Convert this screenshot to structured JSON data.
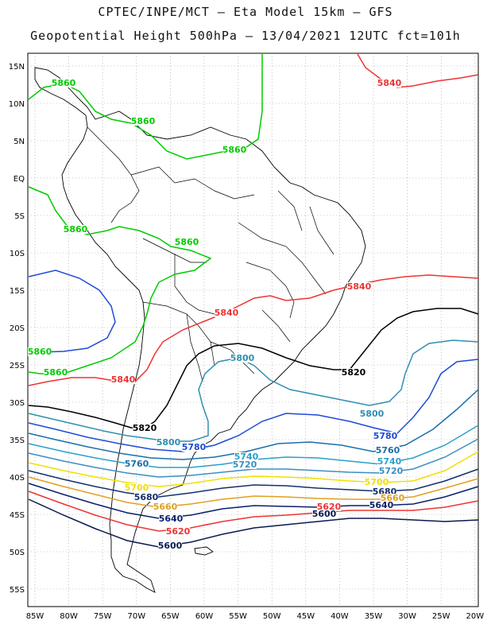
{
  "header": {
    "line1": "CPTEC/INPE/MCT –  Eta Model 15km – GFS",
    "line2": "Geopotential Height 500hPa – 13/04/2021 12UTC fct=101h"
  },
  "axes": {
    "lat_labels": [
      "15N",
      "10N",
      "5N",
      "EQ",
      "5S",
      "10S",
      "15S",
      "20S",
      "25S",
      "30S",
      "35S",
      "40S",
      "45S",
      "50S",
      "55S"
    ],
    "lon_labels": [
      "85W",
      "80W",
      "75W",
      "70W",
      "65W",
      "60W",
      "55W",
      "50W",
      "45W",
      "40W",
      "35W",
      "30W",
      "25W",
      "20W"
    ]
  },
  "colors": {
    "c5860": "#00cc00",
    "c5840": "#ee3333",
    "c5820": "#000000",
    "c5800": "#2f8fb0",
    "c5780": "#1d4bd6",
    "c5760": "#1a6fa8",
    "c5740": "#2aa0c8",
    "c5720": "#3a8fc0",
    "c5700": "#f0e000",
    "c5680": "#13306e",
    "c5660": "#e0a020",
    "c5640": "#0a1f6e",
    "c5620": "#ee3333",
    "c5600": "#0a1a4e",
    "coast": "#000000"
  },
  "contour_labels": [
    {
      "text": "5860",
      "color": "c5860"
    },
    {
      "text": "5860",
      "color": "c5860"
    },
    {
      "text": "5860",
      "color": "c5860"
    },
    {
      "text": "5860",
      "color": "c5860"
    },
    {
      "text": "5860",
      "color": "c5860"
    },
    {
      "text": "5860",
      "color": "c5860"
    },
    {
      "text": "5860",
      "color": "c5860"
    },
    {
      "text": "5840",
      "color": "c5840"
    },
    {
      "text": "5840",
      "color": "c5840"
    },
    {
      "text": "5840",
      "color": "c5840"
    },
    {
      "text": "5840",
      "color": "c5840"
    },
    {
      "text": "5820",
      "color": "c5820"
    },
    {
      "text": "5820",
      "color": "c5820"
    },
    {
      "text": "5800",
      "color": "c5800"
    },
    {
      "text": "5800",
      "color": "c5800"
    },
    {
      "text": "5800",
      "color": "c5800"
    },
    {
      "text": "5780",
      "color": "c5780"
    },
    {
      "text": "5780",
      "color": "c5780"
    },
    {
      "text": "5760",
      "color": "c5760"
    },
    {
      "text": "5760",
      "color": "c5760"
    },
    {
      "text": "5740",
      "color": "c5740"
    },
    {
      "text": "5740",
      "color": "c5740"
    },
    {
      "text": "5720",
      "color": "c5720"
    },
    {
      "text": "5720",
      "color": "c5720"
    },
    {
      "text": "5700",
      "color": "c5700"
    },
    {
      "text": "5700",
      "color": "c5700"
    },
    {
      "text": "5680",
      "color": "c5680"
    },
    {
      "text": "5680",
      "color": "c5680"
    },
    {
      "text": "5660",
      "color": "c5660"
    },
    {
      "text": "5660",
      "color": "c5660"
    },
    {
      "text": "5640",
      "color": "c5640"
    },
    {
      "text": "5640",
      "color": "c5640"
    },
    {
      "text": "5620",
      "color": "c5620"
    },
    {
      "text": "5620",
      "color": "c5620"
    },
    {
      "text": "5600",
      "color": "c5600"
    },
    {
      "text": "5600",
      "color": "c5600"
    }
  ]
}
